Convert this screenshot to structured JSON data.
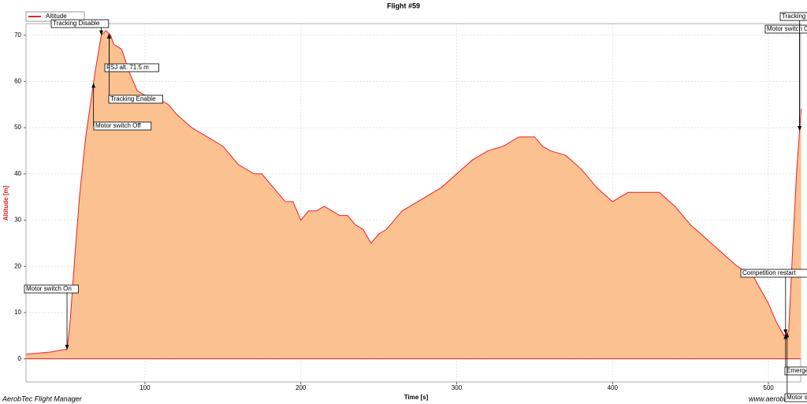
{
  "chart_data": {
    "type": "area",
    "title": "Flight #59",
    "xlabel": "Time [s]",
    "ylabel": "Altitude [m]",
    "footer_left": "AerobTec Flight Manager",
    "footer_right": "www.aerobte",
    "x": [
      24,
      40,
      48,
      50,
      52,
      55,
      58,
      62,
      65,
      68,
      72,
      75,
      78,
      80,
      85,
      90,
      95,
      100,
      105,
      110,
      115,
      120,
      130,
      140,
      150,
      160,
      170,
      175,
      180,
      190,
      195,
      200,
      205,
      210,
      215,
      220,
      225,
      230,
      235,
      240,
      245,
      250,
      255,
      260,
      265,
      270,
      280,
      290,
      300,
      310,
      320,
      330,
      340,
      350,
      355,
      360,
      370,
      380,
      390,
      400,
      410,
      420,
      430,
      440,
      450,
      460,
      470,
      480,
      490,
      500,
      505,
      510,
      513,
      515,
      518,
      521
    ],
    "series": [
      {
        "name": "Altitude",
        "color": "#e8202a",
        "fill": "#fcc190",
        "values": [
          1,
          1.5,
          2,
          2,
          8,
          22,
          35,
          48,
          55,
          62,
          70,
          71,
          70,
          68,
          67,
          62,
          58,
          57,
          57,
          56,
          55,
          53,
          50,
          48,
          46,
          42,
          40,
          40,
          38,
          34,
          34,
          30,
          32,
          32,
          33,
          32,
          31,
          31,
          29,
          28,
          25,
          27,
          28,
          30,
          32,
          33,
          35,
          37,
          40,
          43,
          45,
          46,
          48,
          48,
          46,
          45,
          44,
          41,
          37,
          34,
          36,
          36,
          36,
          33,
          29,
          26,
          23,
          20,
          18,
          12,
          8,
          5,
          6,
          20,
          40,
          54
        ]
      }
    ],
    "xlim": [
      23.7,
      520.7
    ],
    "ylim": [
      -5,
      72.5
    ],
    "xticks": [
      100,
      200,
      300,
      400,
      500
    ],
    "yticks": [
      0,
      10,
      20,
      30,
      40,
      50,
      60,
      70
    ],
    "grid": true,
    "events": [
      {
        "time": 50,
        "label": "Motor switch On"
      },
      {
        "time": 72,
        "label": "Tracking Disable"
      },
      {
        "time": 77,
        "label": "FSJ alt. 71.5 m"
      },
      {
        "time": 77,
        "label": "Tracking Enable"
      },
      {
        "time": 67,
        "label": "Motor switch Off"
      },
      {
        "time": 511,
        "label": "Competition restart"
      },
      {
        "time": 511,
        "label": "Emergenc"
      },
      {
        "time": 520,
        "label": "Motor switch Off"
      },
      {
        "time": 520,
        "label": "Tracking En"
      },
      {
        "time": 512,
        "label": "Motor swi"
      }
    ]
  }
}
